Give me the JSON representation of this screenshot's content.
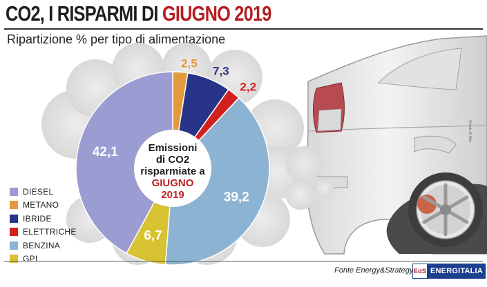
{
  "header": {
    "title_part1": "CO2, I RISPARMI DI ",
    "title_part2": "GIUGNO 2019",
    "subtitle": "Ripartizione % per tipo di alimentazione"
  },
  "center_label": {
    "line1": "Emissioni",
    "line2": "di CO2",
    "line3": "risparmiate a",
    "line4": "GIUGNO",
    "line5": "2019"
  },
  "chart_data": {
    "type": "pie",
    "categories": [
      "DIESEL",
      "METANO",
      "IBRIDE",
      "ELETTRICHE",
      "BENZINA",
      "GPL"
    ],
    "values": [
      42.1,
      2.5,
      7.3,
      2.2,
      39.2,
      6.7
    ],
    "value_labels": [
      "42,1",
      "2,5",
      "7,3",
      "2,2",
      "39,2",
      "6,7"
    ],
    "colors": [
      "#9b9dd2",
      "#e39a3c",
      "#283488",
      "#d2201e",
      "#8db3d2",
      "#d7c231"
    ],
    "label_colors": [
      "#ffffff",
      "#e39a3c",
      "#283488",
      "#d2201e",
      "#ffffff",
      "#ffffff"
    ],
    "title": "CO2, I RISPARMI DI GIUGNO 2019",
    "subtitle": "Ripartizione % per tipo di alimentazione",
    "legend_position": "bottom-left"
  },
  "footer": {
    "source": "Fonte Energy&Strategy",
    "brand": "ENERGITALIA",
    "brand_logo": "EdS",
    "credit": "Sheets Di Mex"
  },
  "icons": {
    "car": "car-rear-illustration-icon",
    "smoke": "exhaust-smoke-icon"
  }
}
